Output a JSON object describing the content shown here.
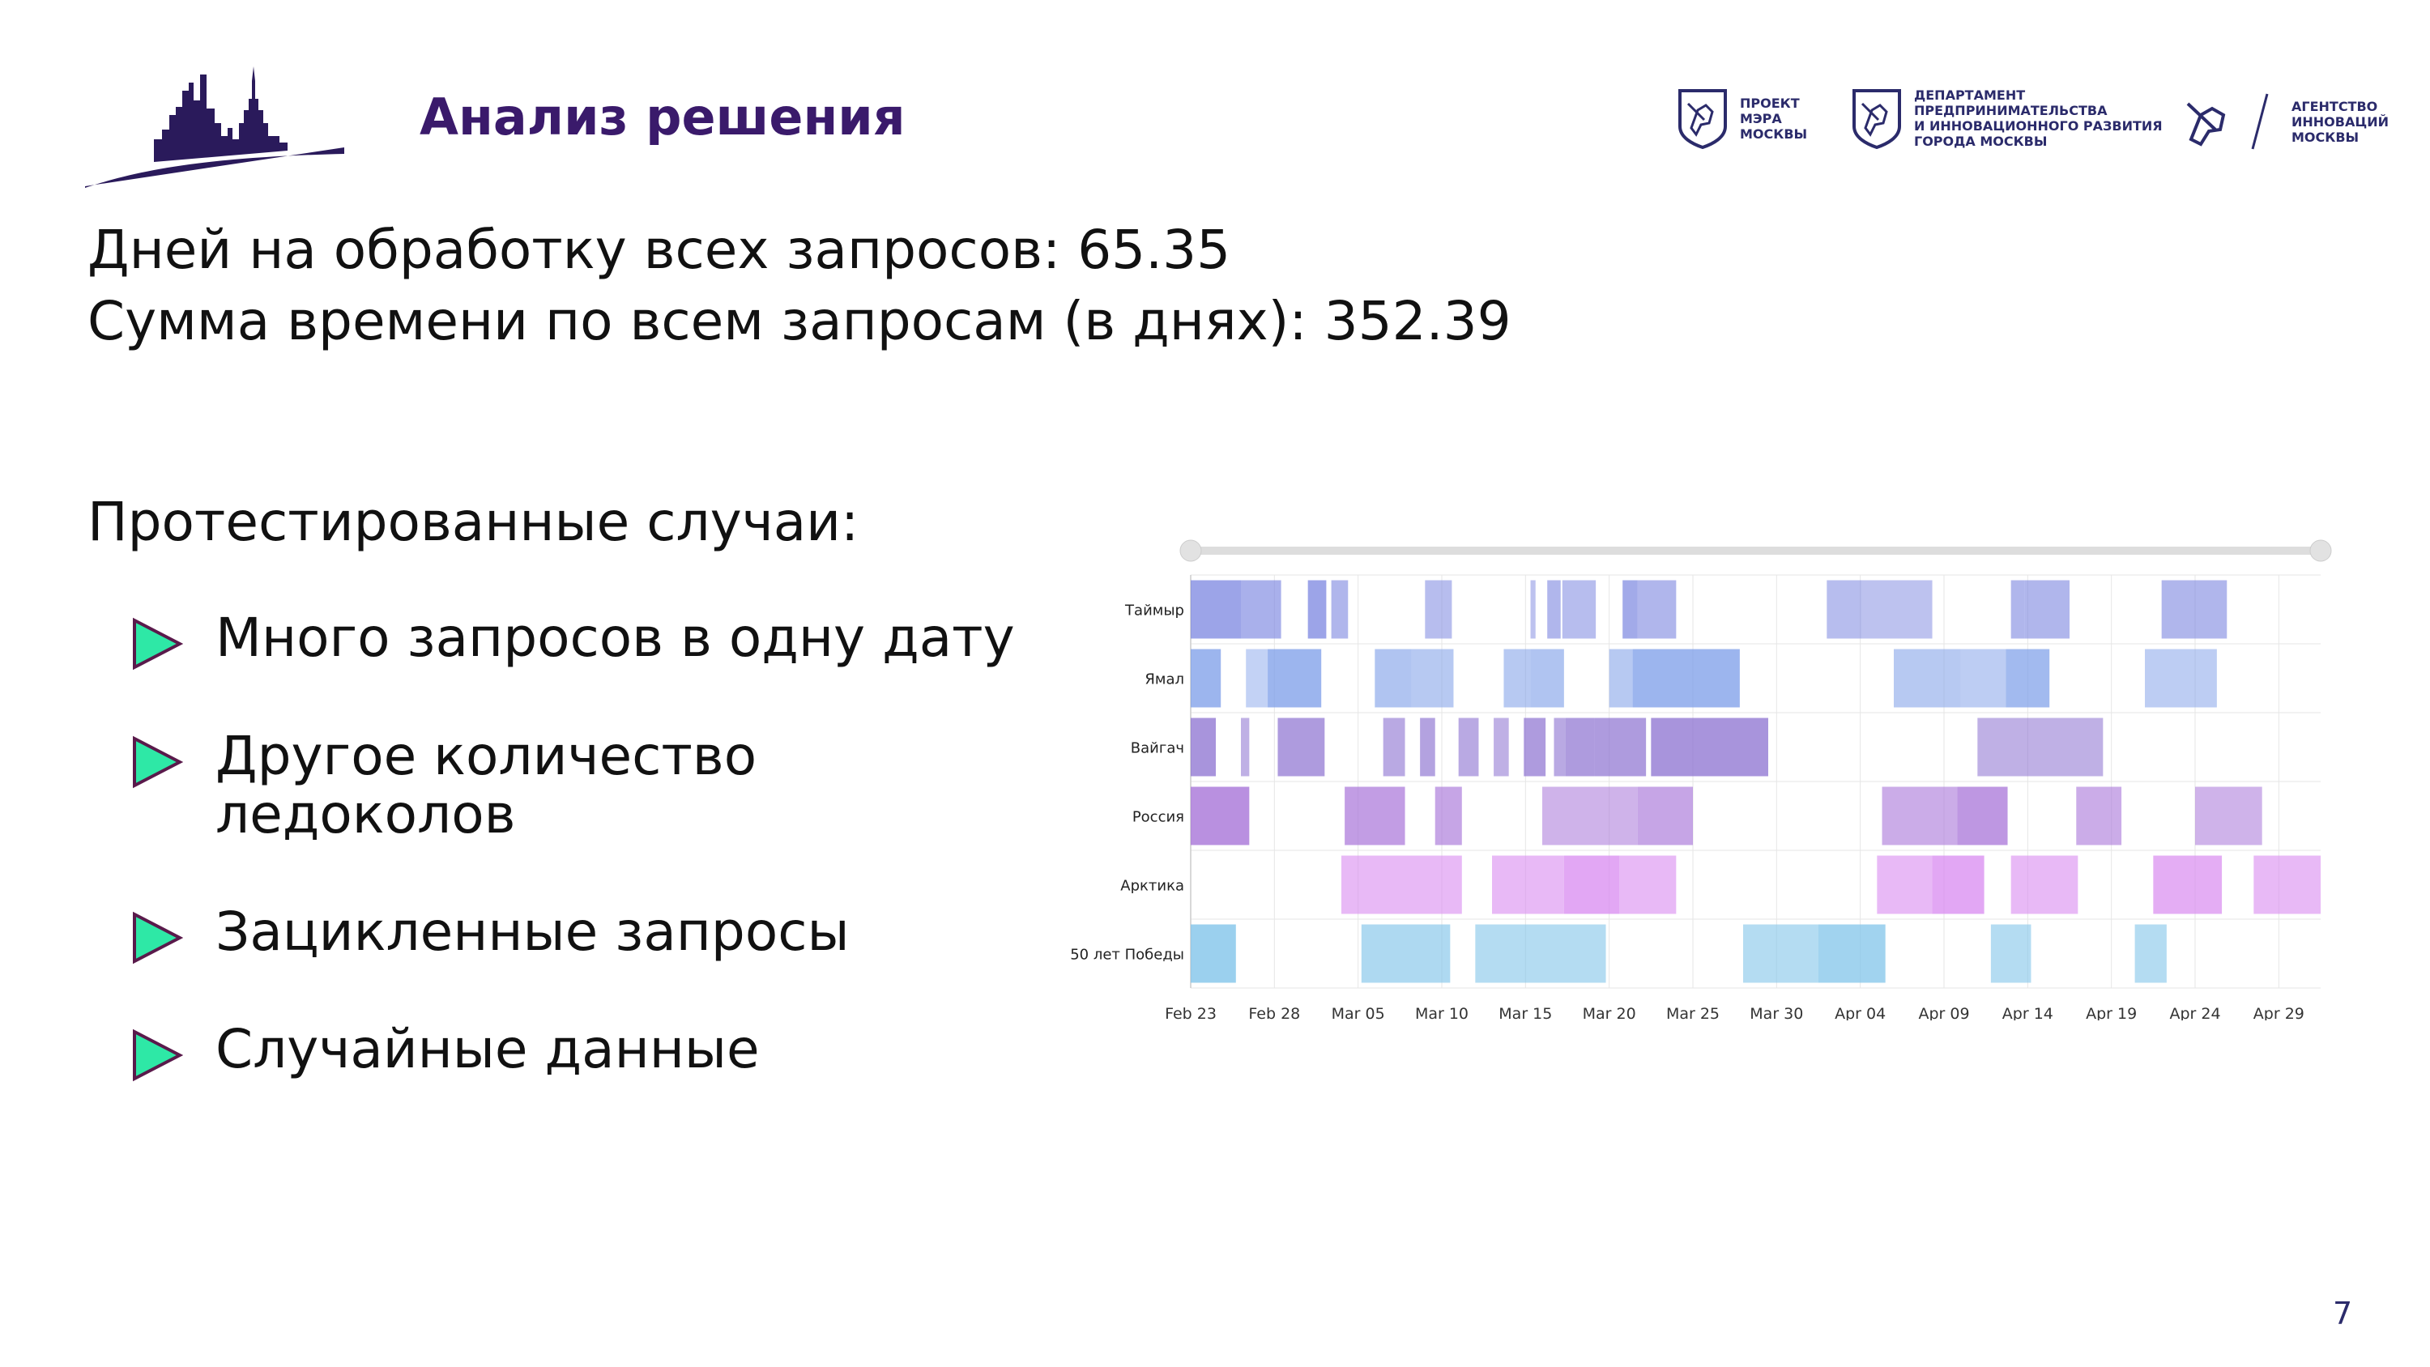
{
  "header": {
    "title": "Анализ решения",
    "logos": [
      {
        "icon": "moscow-coat-of-arms-icon",
        "text": "ПРОЕКТ\nМЭРА\nМОСКВЫ"
      },
      {
        "icon": "moscow-coat-of-arms-icon",
        "text": "ДЕПАРТАМЕНТ\nПРЕДПРИНИМАТЕЛЬСТВА\nИ ИННОВАЦИОННОГО РАЗВИТИЯ\nГОРОДА МОСКВЫ"
      },
      {
        "icon": "st-george-icon",
        "text": "АГЕНТСТВО\nИННОВАЦИЙ\nМОСКВЫ"
      }
    ]
  },
  "stats": {
    "days_line": "Дней на обработку всех запросов: 65.35",
    "sum_line": "Сумма времени по всем запросам (в днях): 352.39"
  },
  "tested": {
    "heading": "Протестированные случаи:",
    "items": [
      "Много запросов в одну дату",
      "Другое количество\nледоколов",
      "Зацикленные запросы",
      "Случайные данные"
    ]
  },
  "colors": {
    "title": "#3a1a6b",
    "bullet_fill": "#2ee8a6",
    "bullet_stroke": "#5a1a4b"
  },
  "page_number": "7",
  "chart_data": {
    "type": "timeline",
    "x_tick_labels": [
      "Feb 23",
      "Feb 28",
      "Mar 05",
      "Mar 10",
      "Mar 15",
      "Mar 20",
      "Mar 25",
      "Mar 30",
      "Apr 04",
      "Apr 09",
      "Apr 14",
      "Apr 19",
      "Apr 24",
      "Apr 29"
    ],
    "x_range_days": [
      0,
      67.5
    ],
    "grid": true,
    "range_slider": true,
    "rows": [
      {
        "name": "Таймыр",
        "color": "#7b86e0",
        "bars": [
          [
            0,
            3.0,
            0.75
          ],
          [
            3.0,
            5.4,
            0.65
          ],
          [
            7.0,
            8.1,
            0.75
          ],
          [
            8.4,
            9.4,
            0.6
          ],
          [
            14.0,
            15.6,
            0.55
          ],
          [
            20.3,
            20.6,
            0.5
          ],
          [
            21.3,
            22.1,
            0.6
          ],
          [
            22.2,
            24.2,
            0.55
          ],
          [
            25.8,
            26.7,
            0.7
          ],
          [
            26.7,
            29.0,
            0.6
          ],
          [
            38.0,
            40.1,
            0.55
          ],
          [
            40.1,
            44.3,
            0.5
          ],
          [
            49.0,
            49.8,
            0.6
          ],
          [
            49.8,
            52.5,
            0.6
          ],
          [
            58.0,
            61.9,
            0.6
          ]
        ]
      },
      {
        "name": "Ямал",
        "color": "#7b9ce8",
        "bars": [
          [
            0,
            1.8,
            0.75
          ],
          [
            3.3,
            4.6,
            0.45
          ],
          [
            4.6,
            7.8,
            0.75
          ],
          [
            11.0,
            13.2,
            0.6
          ],
          [
            13.2,
            15.7,
            0.55
          ],
          [
            18.7,
            20.3,
            0.55
          ],
          [
            20.3,
            22.3,
            0.6
          ],
          [
            25.0,
            26.4,
            0.55
          ],
          [
            26.4,
            32.8,
            0.75
          ],
          [
            42.0,
            46.0,
            0.55
          ],
          [
            46.0,
            48.7,
            0.5
          ],
          [
            48.7,
            51.3,
            0.7
          ],
          [
            57.0,
            61.3,
            0.5
          ]
        ]
      },
      {
        "name": "Вайгач",
        "color": "#8b70d0",
        "bars": [
          [
            0,
            1.5,
            0.75
          ],
          [
            3.0,
            3.5,
            0.55
          ],
          [
            5.2,
            8.0,
            0.7
          ],
          [
            11.5,
            12.8,
            0.6
          ],
          [
            13.7,
            14.6,
            0.65
          ],
          [
            16.0,
            17.2,
            0.6
          ],
          [
            18.1,
            19.0,
            0.55
          ],
          [
            19.9,
            21.2,
            0.7
          ],
          [
            21.7,
            22.4,
            0.6
          ],
          [
            22.4,
            24.1,
            0.7
          ],
          [
            24.1,
            27.2,
            0.7
          ],
          [
            27.5,
            34.5,
            0.75
          ],
          [
            47.0,
            54.5,
            0.55
          ]
        ]
      },
      {
        "name": "Россия",
        "color": "#a874d8",
        "bars": [
          [
            0,
            3.5,
            0.8
          ],
          [
            9.2,
            12.8,
            0.7
          ],
          [
            14.6,
            16.2,
            0.65
          ],
          [
            21.0,
            26.7,
            0.55
          ],
          [
            26.7,
            30.0,
            0.65
          ],
          [
            41.3,
            45.8,
            0.6
          ],
          [
            45.8,
            48.8,
            0.75
          ],
          [
            52.9,
            55.6,
            0.6
          ],
          [
            60.0,
            64.0,
            0.55
          ]
        ]
      },
      {
        "name": "Арктика",
        "color": "#d88af0",
        "bars": [
          [
            9.0,
            16.2,
            0.6
          ],
          [
            18.0,
            22.3,
            0.6
          ],
          [
            22.3,
            25.6,
            0.75
          ],
          [
            25.6,
            29.0,
            0.6
          ],
          [
            41.0,
            44.3,
            0.6
          ],
          [
            44.3,
            47.4,
            0.75
          ],
          [
            49.0,
            53.0,
            0.6
          ],
          [
            57.5,
            61.6,
            0.7
          ],
          [
            63.5,
            67.5,
            0.6
          ]
        ]
      },
      {
        "name": "50 лет Победы",
        "color": "#82c4ea",
        "bars": [
          [
            0,
            2.7,
            0.8
          ],
          [
            10.2,
            15.5,
            0.65
          ],
          [
            17.0,
            24.8,
            0.6
          ],
          [
            33.0,
            37.5,
            0.6
          ],
          [
            37.5,
            41.5,
            0.75
          ],
          [
            47.8,
            50.2,
            0.6
          ],
          [
            56.4,
            58.3,
            0.6
          ]
        ]
      }
    ]
  }
}
